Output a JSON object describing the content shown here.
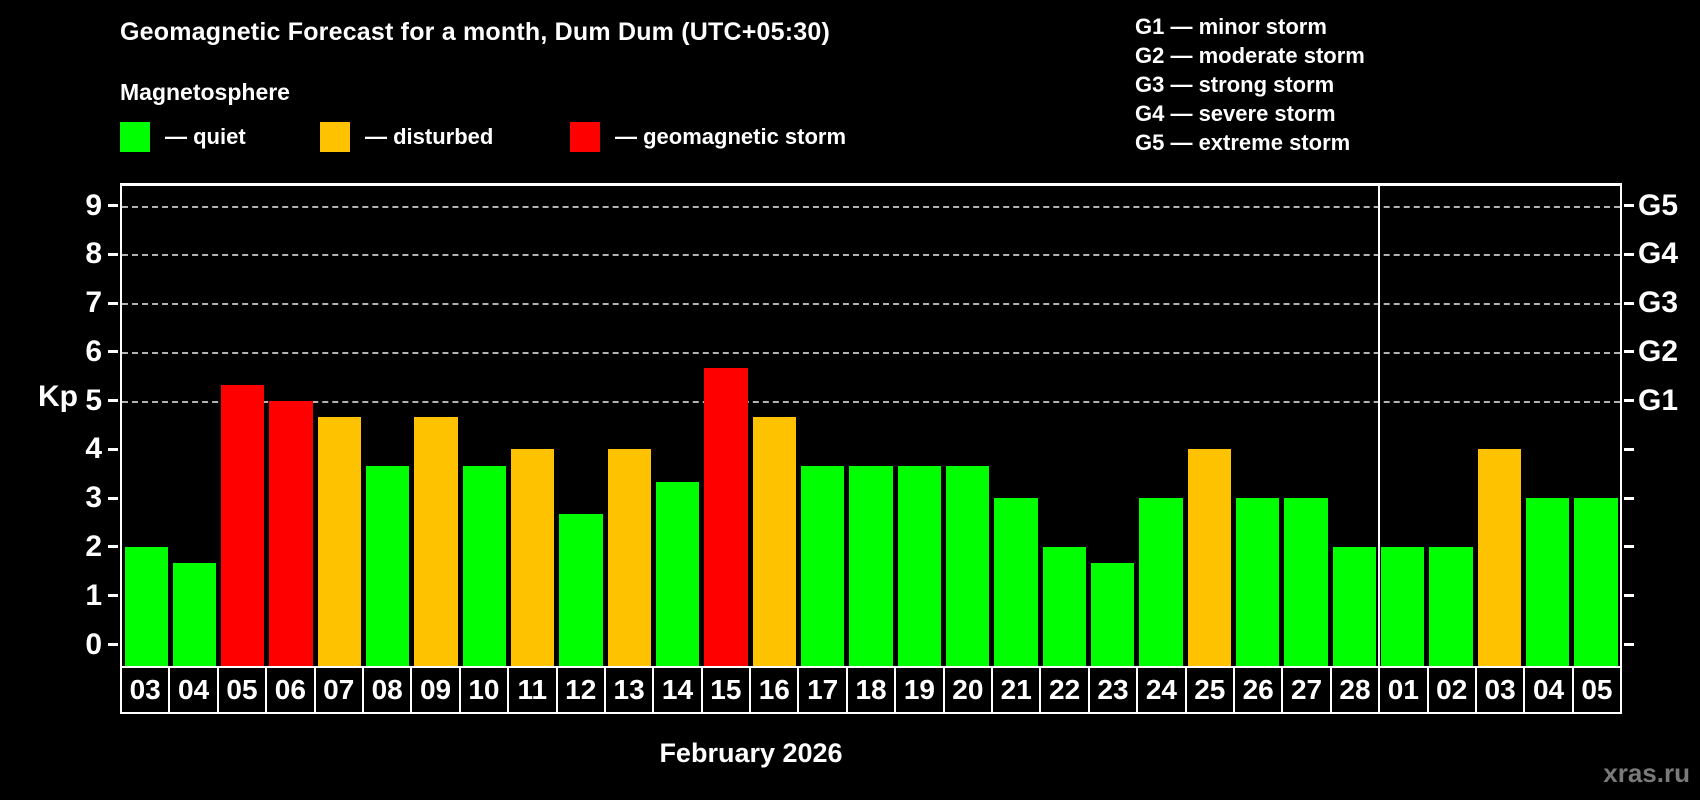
{
  "header": {
    "title": "Geomagnetic Forecast for a month, Dum Dum (UTC+05:30)",
    "subtitle": "Magnetosphere"
  },
  "legend": {
    "items": [
      {
        "key": "quiet",
        "label": "— quiet",
        "color": "#00ff00"
      },
      {
        "key": "disturbed",
        "label": "— disturbed",
        "color": "#ffc200"
      },
      {
        "key": "storm",
        "label": "— geomagnetic storm",
        "color": "#ff0000"
      }
    ]
  },
  "storm_scale_legend": {
    "items": [
      "G1 — minor storm",
      "G2 — moderate storm",
      "G3 — strong storm",
      "G4 — severe storm",
      "G5 — extreme storm"
    ]
  },
  "watermark": "xras.ru",
  "chart_data": {
    "type": "bar",
    "title": "Geomagnetic Forecast for a month, Dum Dum (UTC+05:30)",
    "subtitle": "Magnetosphere",
    "xlabel": "February 2026",
    "ylabel": "Kp",
    "ylim": [
      -0.44,
      9.4
    ],
    "yticks": [
      0,
      1,
      2,
      3,
      4,
      5,
      6,
      7,
      8,
      9
    ],
    "gridlines": [
      5,
      6,
      7,
      8,
      9
    ],
    "grid_style": "dashed",
    "legend_position": "top",
    "right_axis_labels": [
      {
        "kp": 5,
        "label": "G1"
      },
      {
        "kp": 6,
        "label": "G2"
      },
      {
        "kp": 7,
        "label": "G3"
      },
      {
        "kp": 8,
        "label": "G4"
      },
      {
        "kp": 9,
        "label": "G5"
      }
    ],
    "categories": [
      "03",
      "04",
      "05",
      "06",
      "07",
      "08",
      "09",
      "10",
      "11",
      "12",
      "13",
      "14",
      "15",
      "16",
      "17",
      "18",
      "19",
      "20",
      "21",
      "22",
      "23",
      "24",
      "25",
      "26",
      "27",
      "28",
      "01",
      "02",
      "03",
      "04",
      "05"
    ],
    "values": [
      2.0,
      1.67,
      5.33,
      5.0,
      4.67,
      3.67,
      4.67,
      3.67,
      4.0,
      2.67,
      4.0,
      3.33,
      5.67,
      4.67,
      3.67,
      3.67,
      3.67,
      3.67,
      3.0,
      2.0,
      1.67,
      3.0,
      4.0,
      3.0,
      3.0,
      2.0,
      2.0,
      2.0,
      4.0,
      3.0,
      3.0
    ],
    "statuses": [
      "quiet",
      "quiet",
      "storm",
      "storm",
      "disturbed",
      "quiet",
      "disturbed",
      "quiet",
      "disturbed",
      "quiet",
      "disturbed",
      "quiet",
      "storm",
      "disturbed",
      "quiet",
      "quiet",
      "quiet",
      "quiet",
      "quiet",
      "quiet",
      "quiet",
      "quiet",
      "disturbed",
      "quiet",
      "quiet",
      "quiet",
      "quiet",
      "quiet",
      "disturbed",
      "quiet",
      "quiet"
    ],
    "month_separator_after_index": 25,
    "colors": {
      "quiet": "#00ff00",
      "disturbed": "#ffc200",
      "storm": "#ff0000"
    }
  }
}
